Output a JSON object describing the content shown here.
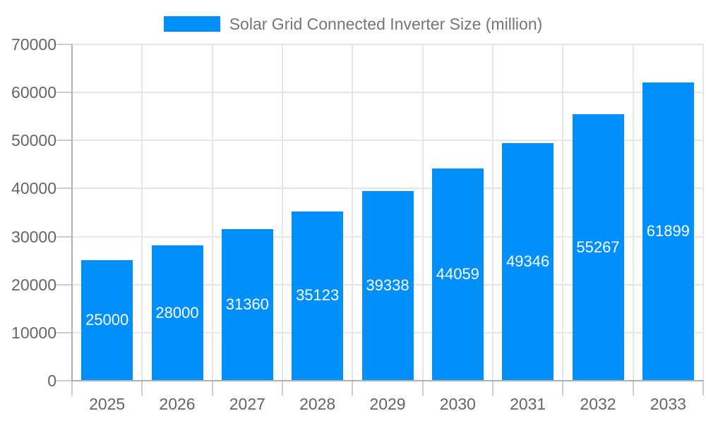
{
  "chart_data": {
    "type": "bar",
    "legend_label": "Solar Grid Connected Inverter Size (million)",
    "categories": [
      "2025",
      "2026",
      "2027",
      "2028",
      "2029",
      "2030",
      "2031",
      "2032",
      "2033"
    ],
    "series": [
      {
        "name": "Solar Grid Connected Inverter Size (million)",
        "values": [
          25000,
          28000,
          31360,
          35123,
          39338,
          44059,
          49346,
          55267,
          61899
        ]
      }
    ],
    "y_ticks": [
      0,
      10000,
      20000,
      30000,
      40000,
      50000,
      60000,
      70000
    ],
    "ylim": [
      0,
      70000
    ],
    "xlabel": "",
    "ylabel": "",
    "grid": true,
    "legend_position": "top-center",
    "bar_labels_inside": true,
    "colors": {
      "bar": "#008ffb",
      "bar_label_text": "#ffffff",
      "axis_line": "#b0b0b0",
      "tick": "#cccccc",
      "gridline": "#e6e6e6",
      "axis_label_text": "#666666",
      "legend_text": "#757575",
      "background": "#ffffff"
    }
  }
}
